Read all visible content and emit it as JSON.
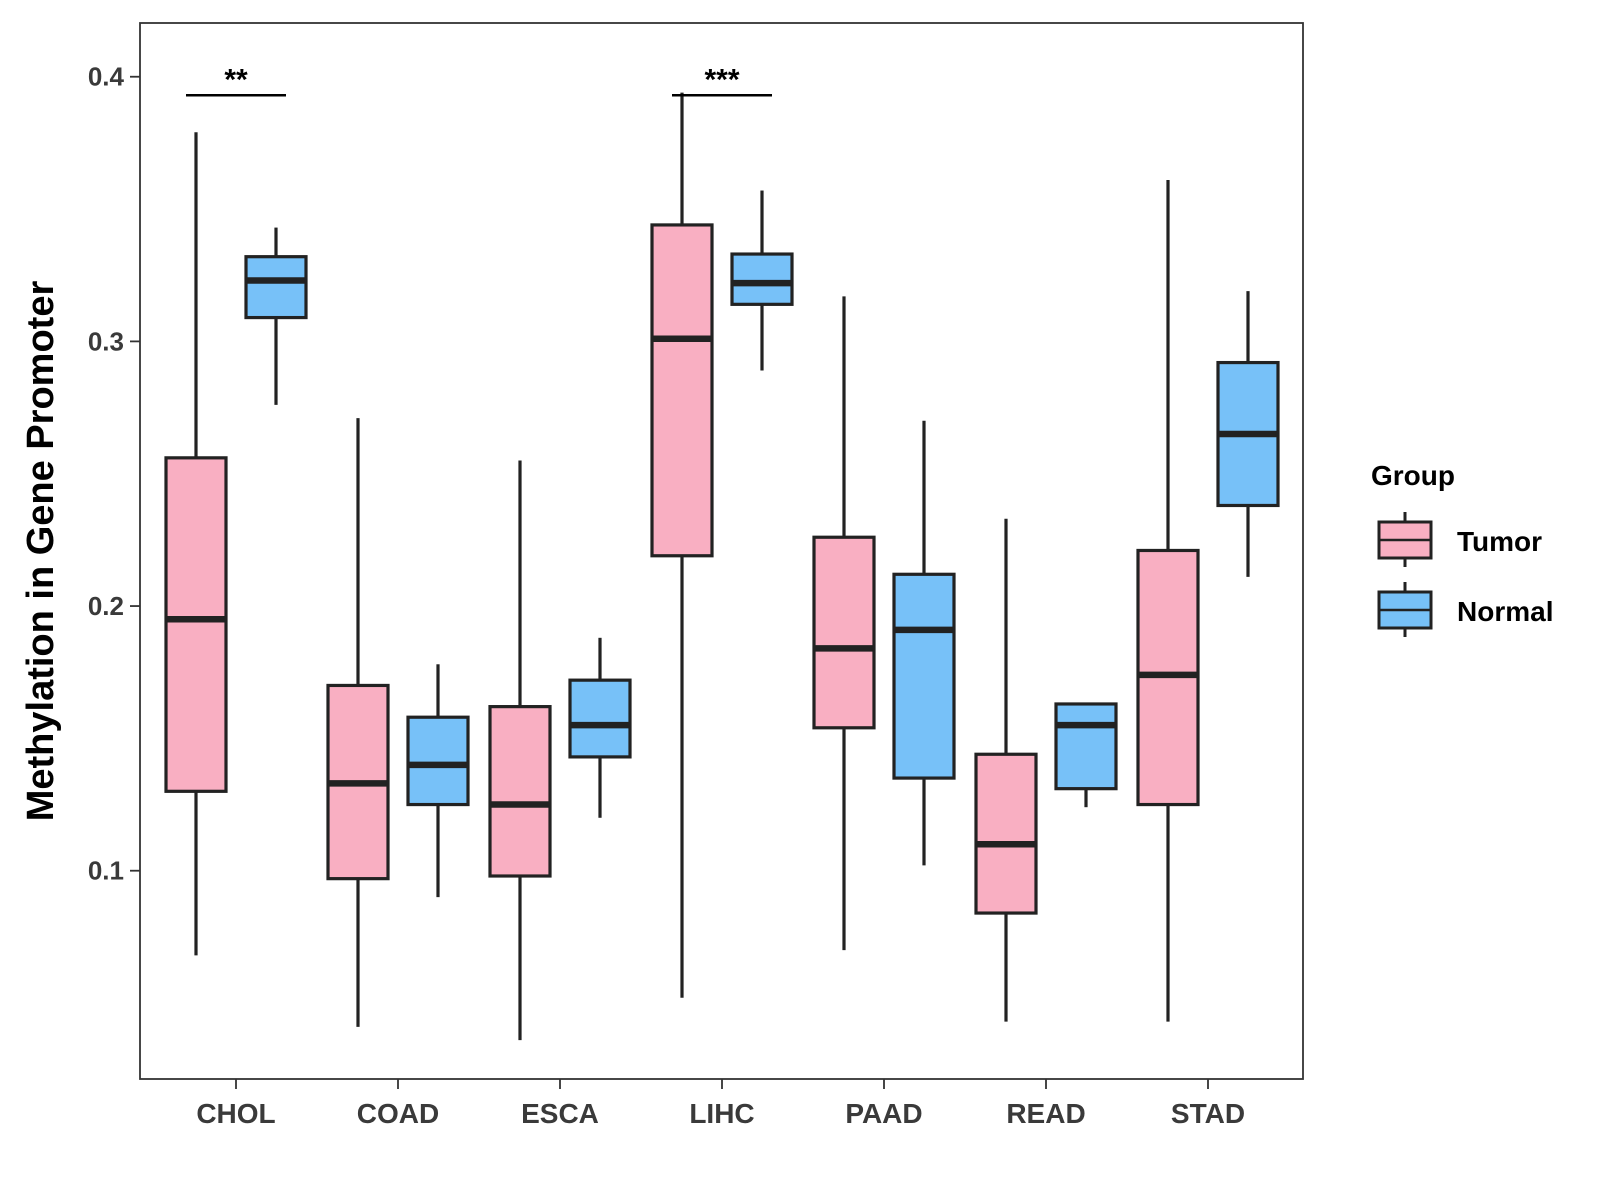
{
  "chart_data": {
    "type": "boxplot",
    "title": "",
    "xlabel": "",
    "ylabel": "Methylation in Gene Promoter",
    "ylim": [
      0.0213,
      0.4203
    ],
    "yticks": [
      0.1,
      0.2,
      0.3,
      0.4
    ],
    "ytick_labels": [
      "0.1",
      "0.2",
      "0.3",
      "0.4"
    ],
    "categories": [
      "CHOL",
      "COAD",
      "ESCA",
      "LIHC",
      "PAAD",
      "READ",
      "STAD"
    ],
    "legend": {
      "title": "Group",
      "position": "right",
      "entries": [
        {
          "name": "Tumor",
          "color": "#F9AFC2"
        },
        {
          "name": "Normal",
          "color": "#77C1F8"
        }
      ]
    },
    "series": [
      {
        "name": "Tumor",
        "color": "#F9AFC2",
        "boxes": [
          {
            "category": "CHOL",
            "min": 0.068,
            "q1": 0.13,
            "median": 0.195,
            "q3": 0.256,
            "max": 0.379
          },
          {
            "category": "COAD",
            "min": 0.041,
            "q1": 0.097,
            "median": 0.133,
            "q3": 0.17,
            "max": 0.271
          },
          {
            "category": "ESCA",
            "min": 0.036,
            "q1": 0.098,
            "median": 0.125,
            "q3": 0.162,
            "max": 0.255
          },
          {
            "category": "LIHC",
            "min": 0.052,
            "q1": 0.219,
            "median": 0.301,
            "q3": 0.344,
            "max": 0.394
          },
          {
            "category": "PAAD",
            "min": 0.07,
            "q1": 0.154,
            "median": 0.184,
            "q3": 0.226,
            "max": 0.317
          },
          {
            "category": "READ",
            "min": 0.043,
            "q1": 0.084,
            "median": 0.11,
            "q3": 0.144,
            "max": 0.233
          },
          {
            "category": "STAD",
            "min": 0.043,
            "q1": 0.125,
            "median": 0.174,
            "q3": 0.221,
            "max": 0.361
          }
        ]
      },
      {
        "name": "Normal",
        "color": "#77C1F8",
        "boxes": [
          {
            "category": "CHOL",
            "min": 0.276,
            "q1": 0.309,
            "median": 0.323,
            "q3": 0.332,
            "max": 0.343
          },
          {
            "category": "COAD",
            "min": 0.09,
            "q1": 0.125,
            "median": 0.14,
            "q3": 0.158,
            "max": 0.178
          },
          {
            "category": "ESCA",
            "min": 0.12,
            "q1": 0.143,
            "median": 0.155,
            "q3": 0.172,
            "max": 0.188
          },
          {
            "category": "LIHC",
            "min": 0.289,
            "q1": 0.314,
            "median": 0.322,
            "q3": 0.333,
            "max": 0.357
          },
          {
            "category": "PAAD",
            "min": 0.102,
            "q1": 0.135,
            "median": 0.191,
            "q3": 0.212,
            "max": 0.27
          },
          {
            "category": "READ",
            "min": 0.124,
            "q1": 0.131,
            "median": 0.155,
            "q3": 0.163,
            "max": 0.163
          },
          {
            "category": "STAD",
            "min": 0.211,
            "q1": 0.238,
            "median": 0.265,
            "q3": 0.292,
            "max": 0.319
          }
        ]
      }
    ],
    "annotations": [
      {
        "category": "CHOL",
        "label": "**",
        "y": 0.393
      },
      {
        "category": "LIHC",
        "label": "***",
        "y": 0.393
      }
    ]
  }
}
